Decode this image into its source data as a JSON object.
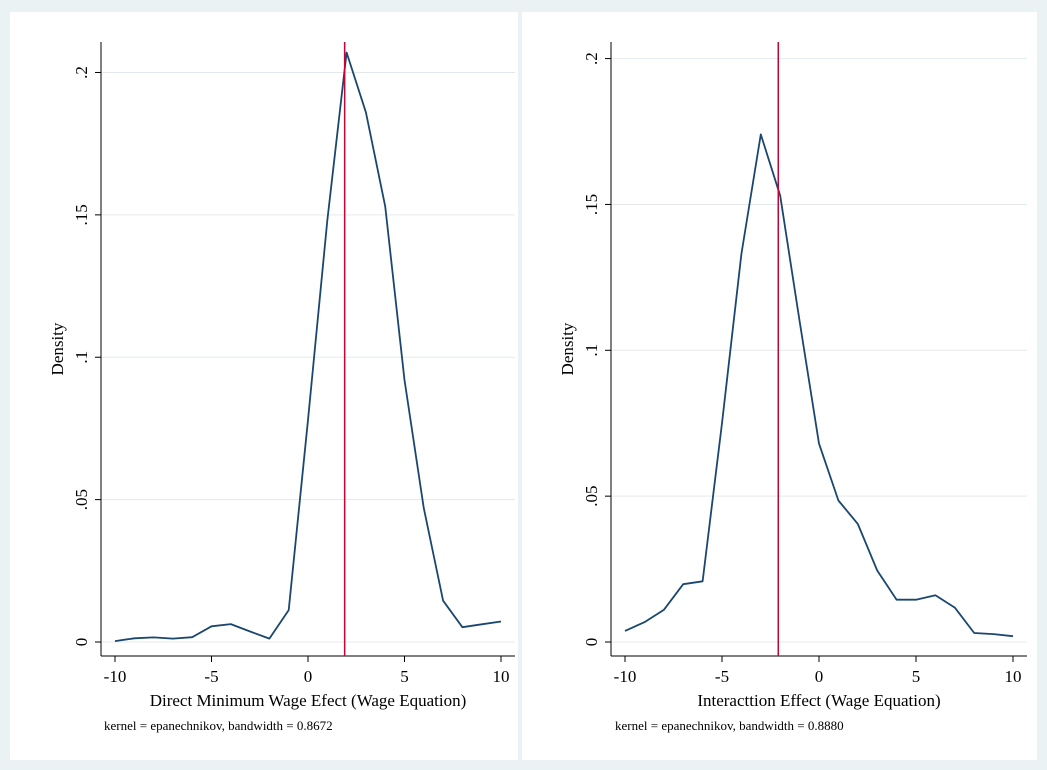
{
  "chart_data": [
    {
      "type": "line",
      "xlabel": "Direct Minimum Wage Efect (Wage Equation)",
      "ylabel": "Density",
      "note": "kernel = epanechnikov, bandwidth = 0.8672",
      "xlim": [
        -10,
        10
      ],
      "ylim": [
        0,
        0.21
      ],
      "xticks": [
        -10,
        -5,
        0,
        5,
        10
      ],
      "xtick_labels": [
        "-10",
        "-5",
        "0",
        "5",
        "10"
      ],
      "yticks": [
        0,
        0.05,
        0.1,
        0.15,
        0.2
      ],
      "ytick_labels": [
        "0",
        ".05",
        ".1",
        ".15",
        ".2"
      ],
      "grid": true,
      "reference_line_x": 1.9,
      "series": [
        {
          "x": [
            -10,
            -9,
            -8,
            -7,
            -6,
            -5,
            -4,
            -3,
            -2,
            -1,
            0,
            1,
            2,
            3,
            4,
            5,
            6,
            7,
            8,
            9,
            10
          ],
          "y": [
            0.0003,
            0.0013,
            0.0016,
            0.0012,
            0.0017,
            0.0055,
            0.0063,
            0.0037,
            0.0012,
            0.0112,
            0.078,
            0.148,
            0.207,
            0.186,
            0.153,
            0.092,
            0.047,
            0.0145,
            0.0052,
            0.0062,
            0.0072
          ],
          "color": "#1a476f"
        }
      ]
    },
    {
      "type": "line",
      "xlabel": "Interacttion Effect (Wage Equation)",
      "ylabel": "Density",
      "note": "kernel = epanechnikov, bandwidth = 0.8880",
      "xlim": [
        -10,
        10
      ],
      "ylim": [
        0,
        0.205
      ],
      "xticks": [
        -10,
        -5,
        0,
        5,
        10
      ],
      "xtick_labels": [
        "-10",
        "-5",
        "0",
        "5",
        "10"
      ],
      "yticks": [
        0,
        0.05,
        0.1,
        0.15,
        0.2
      ],
      "ytick_labels": [
        "0",
        ".05",
        ".1",
        ".15",
        ".2"
      ],
      "grid": true,
      "reference_line_x": -2.1,
      "series": [
        {
          "x": [
            -10,
            -9,
            -8,
            -7,
            -6,
            -5,
            -4,
            -3,
            -2,
            -1,
            0,
            1,
            2,
            3,
            4,
            5,
            6,
            7,
            8,
            9,
            10
          ],
          "y": [
            0.0038,
            0.0068,
            0.011,
            0.0198,
            0.0208,
            0.075,
            0.133,
            0.174,
            0.153,
            0.11,
            0.068,
            0.0485,
            0.0405,
            0.0245,
            0.0145,
            0.0145,
            0.016,
            0.0118,
            0.0031,
            0.0027,
            0.002
          ],
          "color": "#1a476f"
        }
      ]
    }
  ],
  "colors": {
    "background": "#eaf2f3",
    "curve": "#1a476f",
    "reference_line": "#c10534",
    "grid": "#e6e9ec"
  }
}
